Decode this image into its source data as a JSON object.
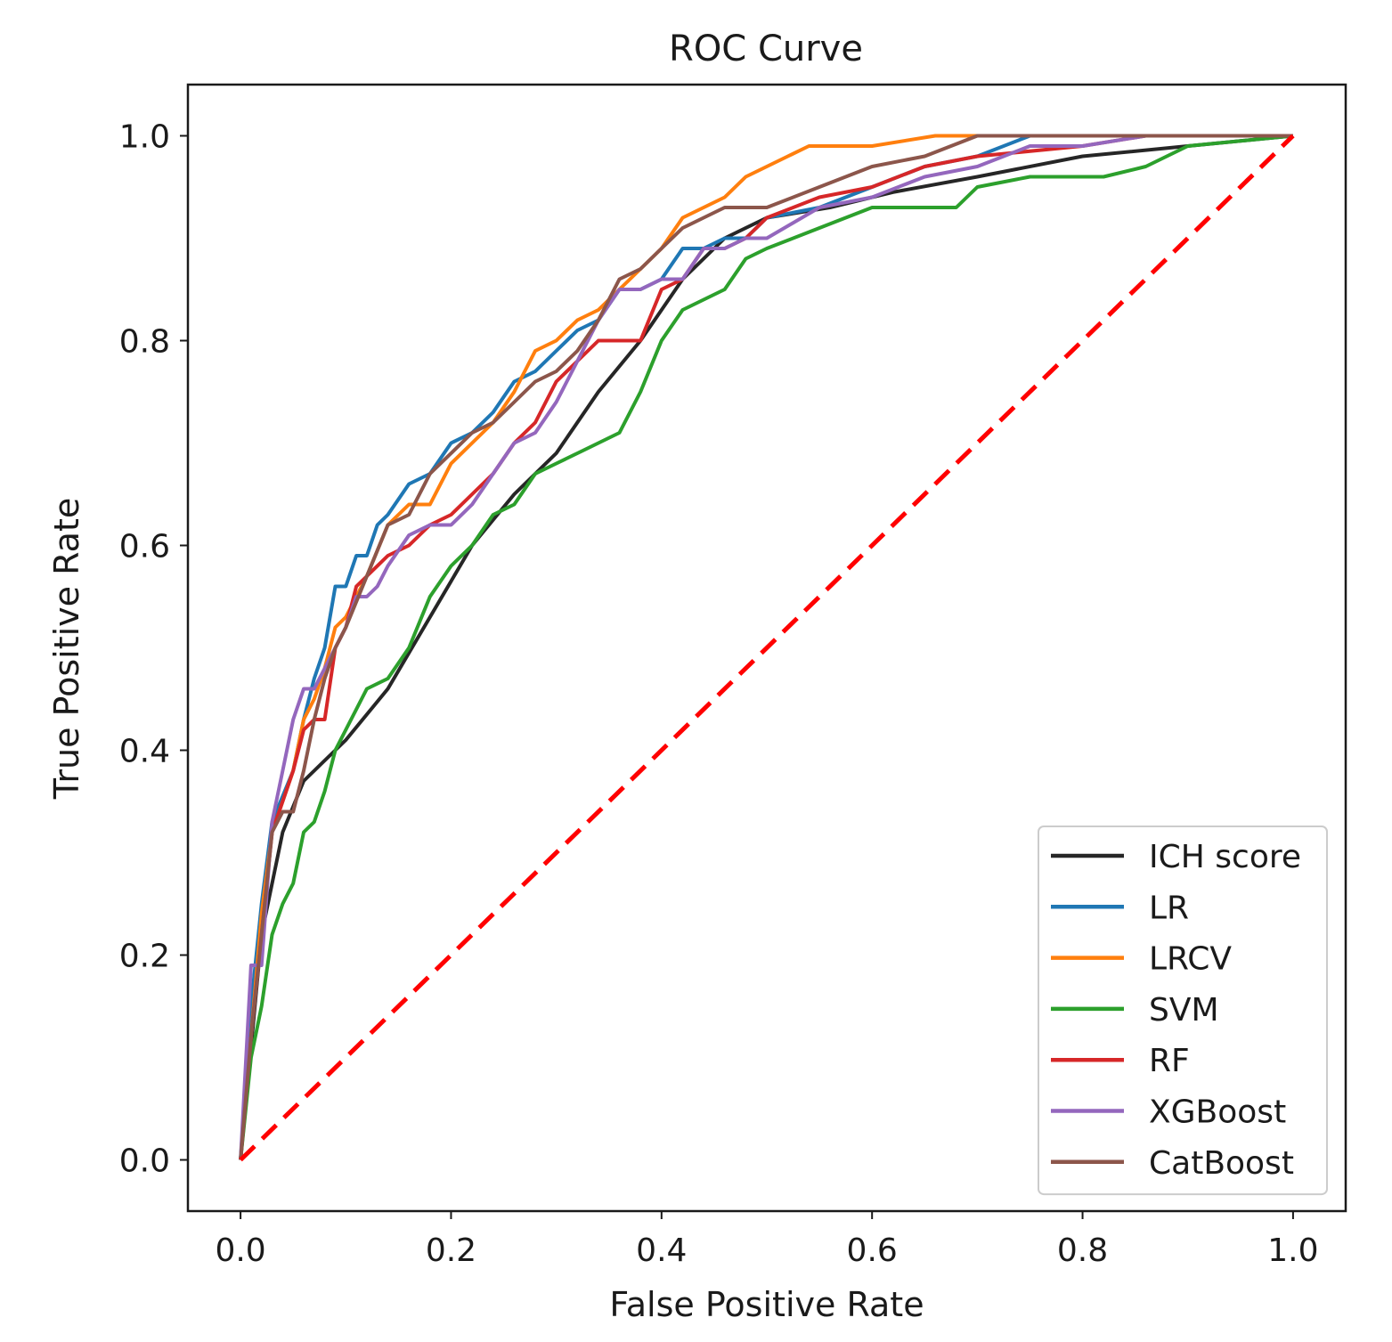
{
  "chart_data": {
    "type": "line",
    "title": "ROC Curve",
    "xlabel": "False Positive Rate",
    "ylabel": "True Positive Rate",
    "xlim": [
      -0.05,
      1.05
    ],
    "ylim": [
      -0.05,
      1.05
    ],
    "x_ticks": [
      "0.0",
      "0.2",
      "0.4",
      "0.6",
      "0.8",
      "1.0"
    ],
    "y_ticks": [
      "0.0",
      "0.2",
      "0.4",
      "0.6",
      "0.8",
      "1.0"
    ],
    "legend_position": "lower-right",
    "series": [
      {
        "name": "ICH score",
        "color": "#262626",
        "style": "solid",
        "x": [
          0.0,
          0.02,
          0.04,
          0.06,
          0.08,
          0.1,
          0.14,
          0.18,
          0.22,
          0.26,
          0.3,
          0.34,
          0.38,
          0.42,
          0.46,
          0.5,
          0.56,
          0.62,
          0.7,
          0.8,
          0.9,
          1.0
        ],
        "y": [
          0.0,
          0.22,
          0.32,
          0.37,
          0.39,
          0.41,
          0.46,
          0.53,
          0.6,
          0.65,
          0.69,
          0.75,
          0.8,
          0.86,
          0.9,
          0.92,
          0.93,
          0.945,
          0.96,
          0.98,
          0.99,
          1.0
        ]
      },
      {
        "name": "LR",
        "color": "#1f77b4",
        "style": "solid",
        "x": [
          0.0,
          0.01,
          0.02,
          0.03,
          0.05,
          0.06,
          0.07,
          0.08,
          0.09,
          0.1,
          0.11,
          0.12,
          0.13,
          0.14,
          0.16,
          0.18,
          0.2,
          0.22,
          0.24,
          0.26,
          0.28,
          0.3,
          0.32,
          0.34,
          0.36,
          0.38,
          0.4,
          0.42,
          0.44,
          0.46,
          0.48,
          0.5,
          0.55,
          0.6,
          0.65,
          0.7,
          0.75,
          0.8,
          1.0
        ],
        "y": [
          0.0,
          0.15,
          0.25,
          0.33,
          0.38,
          0.43,
          0.47,
          0.5,
          0.56,
          0.56,
          0.59,
          0.59,
          0.62,
          0.63,
          0.66,
          0.67,
          0.7,
          0.71,
          0.73,
          0.76,
          0.77,
          0.79,
          0.81,
          0.82,
          0.85,
          0.85,
          0.86,
          0.89,
          0.89,
          0.9,
          0.9,
          0.92,
          0.93,
          0.95,
          0.97,
          0.98,
          1.0,
          1.0,
          1.0
        ]
      },
      {
        "name": "LRCV",
        "color": "#ff7f0e",
        "style": "solid",
        "x": [
          0.0,
          0.01,
          0.02,
          0.03,
          0.05,
          0.06,
          0.07,
          0.08,
          0.09,
          0.1,
          0.12,
          0.14,
          0.16,
          0.18,
          0.2,
          0.22,
          0.24,
          0.26,
          0.28,
          0.3,
          0.32,
          0.34,
          0.36,
          0.38,
          0.4,
          0.42,
          0.44,
          0.46,
          0.48,
          0.5,
          0.52,
          0.54,
          0.6,
          0.66,
          0.7,
          1.0
        ],
        "y": [
          0.0,
          0.12,
          0.24,
          0.32,
          0.38,
          0.43,
          0.45,
          0.48,
          0.52,
          0.53,
          0.57,
          0.62,
          0.64,
          0.64,
          0.68,
          0.7,
          0.72,
          0.75,
          0.79,
          0.8,
          0.82,
          0.83,
          0.85,
          0.87,
          0.89,
          0.92,
          0.93,
          0.94,
          0.96,
          0.97,
          0.98,
          0.99,
          0.99,
          1.0,
          1.0,
          1.0
        ]
      },
      {
        "name": "SVM",
        "color": "#2ca02c",
        "style": "solid",
        "x": [
          0.0,
          0.01,
          0.02,
          0.03,
          0.04,
          0.05,
          0.06,
          0.07,
          0.08,
          0.09,
          0.1,
          0.12,
          0.14,
          0.16,
          0.18,
          0.2,
          0.22,
          0.24,
          0.26,
          0.28,
          0.3,
          0.32,
          0.34,
          0.36,
          0.38,
          0.4,
          0.42,
          0.44,
          0.46,
          0.48,
          0.5,
          0.55,
          0.6,
          0.65,
          0.68,
          0.7,
          0.75,
          0.82,
          0.86,
          0.9,
          1.0
        ],
        "y": [
          0.0,
          0.1,
          0.15,
          0.22,
          0.25,
          0.27,
          0.32,
          0.33,
          0.36,
          0.4,
          0.42,
          0.46,
          0.47,
          0.5,
          0.55,
          0.58,
          0.6,
          0.63,
          0.64,
          0.67,
          0.68,
          0.69,
          0.7,
          0.71,
          0.75,
          0.8,
          0.83,
          0.84,
          0.85,
          0.88,
          0.89,
          0.91,
          0.93,
          0.93,
          0.93,
          0.95,
          0.96,
          0.96,
          0.97,
          0.99,
          1.0
        ]
      },
      {
        "name": "RF",
        "color": "#d62728",
        "style": "solid",
        "x": [
          0.0,
          0.01,
          0.02,
          0.03,
          0.05,
          0.06,
          0.07,
          0.08,
          0.09,
          0.1,
          0.11,
          0.12,
          0.14,
          0.16,
          0.18,
          0.2,
          0.22,
          0.24,
          0.26,
          0.28,
          0.3,
          0.32,
          0.34,
          0.36,
          0.38,
          0.4,
          0.42,
          0.44,
          0.46,
          0.48,
          0.5,
          0.55,
          0.6,
          0.65,
          0.7,
          0.8,
          0.86,
          1.0
        ],
        "y": [
          0.0,
          0.12,
          0.22,
          0.32,
          0.38,
          0.42,
          0.43,
          0.43,
          0.5,
          0.52,
          0.56,
          0.57,
          0.59,
          0.6,
          0.62,
          0.63,
          0.65,
          0.67,
          0.7,
          0.72,
          0.76,
          0.78,
          0.8,
          0.8,
          0.8,
          0.85,
          0.86,
          0.89,
          0.89,
          0.9,
          0.92,
          0.94,
          0.95,
          0.97,
          0.98,
          0.99,
          1.0,
          1.0
        ]
      },
      {
        "name": "XGBoost",
        "color": "#9467bd",
        "style": "solid",
        "x": [
          0.0,
          0.01,
          0.02,
          0.03,
          0.04,
          0.05,
          0.06,
          0.07,
          0.08,
          0.09,
          0.1,
          0.11,
          0.12,
          0.13,
          0.14,
          0.16,
          0.18,
          0.2,
          0.22,
          0.24,
          0.26,
          0.28,
          0.3,
          0.32,
          0.34,
          0.36,
          0.38,
          0.4,
          0.42,
          0.44,
          0.46,
          0.48,
          0.5,
          0.55,
          0.6,
          0.65,
          0.7,
          0.75,
          0.8,
          0.86,
          1.0
        ],
        "y": [
          0.0,
          0.19,
          0.19,
          0.33,
          0.38,
          0.43,
          0.46,
          0.46,
          0.48,
          0.5,
          0.52,
          0.55,
          0.55,
          0.56,
          0.58,
          0.61,
          0.62,
          0.62,
          0.64,
          0.67,
          0.7,
          0.71,
          0.74,
          0.78,
          0.82,
          0.85,
          0.85,
          0.86,
          0.86,
          0.89,
          0.89,
          0.9,
          0.9,
          0.93,
          0.94,
          0.96,
          0.97,
          0.99,
          0.99,
          1.0,
          1.0
        ]
      },
      {
        "name": "CatBoost",
        "color": "#8c564b",
        "style": "solid",
        "x": [
          0.0,
          0.01,
          0.02,
          0.03,
          0.04,
          0.05,
          0.06,
          0.07,
          0.08,
          0.09,
          0.1,
          0.12,
          0.14,
          0.16,
          0.18,
          0.2,
          0.22,
          0.24,
          0.26,
          0.28,
          0.3,
          0.32,
          0.34,
          0.36,
          0.38,
          0.4,
          0.42,
          0.44,
          0.46,
          0.48,
          0.5,
          0.55,
          0.6,
          0.65,
          0.7,
          0.75,
          0.8,
          1.0
        ],
        "y": [
          0.0,
          0.12,
          0.22,
          0.32,
          0.34,
          0.34,
          0.38,
          0.43,
          0.47,
          0.5,
          0.52,
          0.57,
          0.62,
          0.63,
          0.67,
          0.69,
          0.71,
          0.72,
          0.74,
          0.76,
          0.77,
          0.79,
          0.82,
          0.86,
          0.87,
          0.89,
          0.91,
          0.92,
          0.93,
          0.93,
          0.93,
          0.95,
          0.97,
          0.98,
          1.0,
          1.0,
          1.0,
          1.0
        ]
      },
      {
        "name": "chance",
        "color": "#ff0000",
        "style": "dashed",
        "in_legend": false,
        "x": [
          0.0,
          1.0
        ],
        "y": [
          0.0,
          1.0
        ]
      }
    ]
  }
}
